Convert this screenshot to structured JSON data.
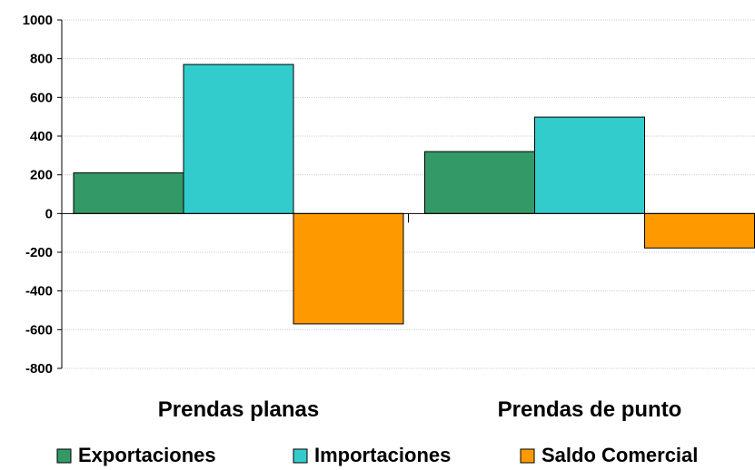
{
  "chart_data": {
    "type": "bar",
    "categories": [
      "Prendas planas",
      "Prendas de punto"
    ],
    "series": [
      {
        "name": "Exportaciones",
        "values": [
          210,
          320
        ],
        "color": "#339966"
      },
      {
        "name": "Importaciones",
        "values": [
          770,
          498
        ],
        "color": "#33CCCC"
      },
      {
        "name": "Saldo Comercial",
        "values": [
          -570,
          -178
        ],
        "color": "#FF9900"
      }
    ],
    "ylim": [
      -800,
      1000
    ],
    "yticks": [
      -800,
      -600,
      -400,
      -200,
      0,
      200,
      400,
      600,
      800,
      1000
    ],
    "grid": true,
    "legend_position": "bottom"
  }
}
